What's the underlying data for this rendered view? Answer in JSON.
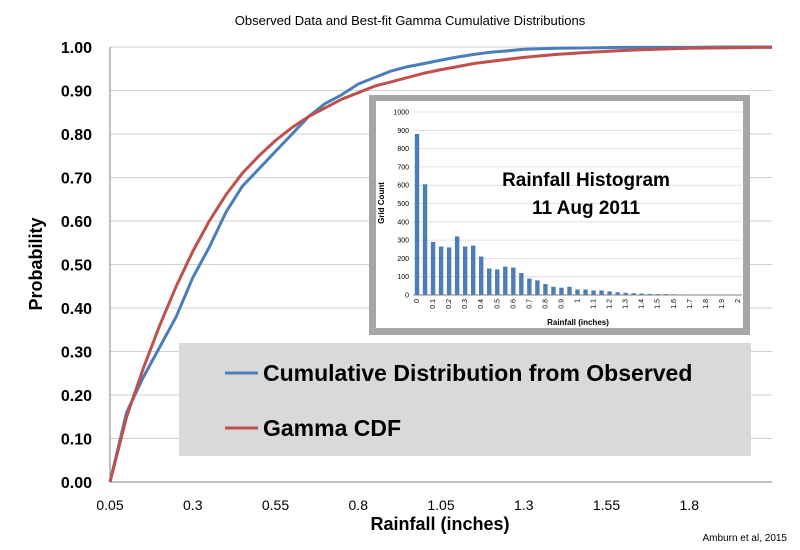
{
  "credit": "Amburn et al, 2015",
  "chart_data": [
    {
      "type": "line",
      "title": "Observed Data and Best-fit Gamma Cumulative Distributions",
      "xlabel": "Rainfall (inches)",
      "ylabel": "Probability",
      "xlim": [
        0.05,
        2.05
      ],
      "ylim": [
        0,
        1
      ],
      "x_ticks": [
        0.05,
        0.3,
        0.55,
        0.8,
        1.05,
        1.3,
        1.55,
        1.8
      ],
      "x_tick_labels": [
        "0.05",
        "0.3",
        "0.55",
        "0.8",
        "1.05",
        "1.3",
        "1.55",
        "1.8"
      ],
      "y_ticks": [
        0,
        0.1,
        0.2,
        0.3,
        0.4,
        0.5,
        0.6,
        0.7,
        0.8,
        0.9,
        1.0
      ],
      "y_tick_labels": [
        "0.00",
        "0.10",
        "0.20",
        "0.30",
        "0.40",
        "0.50",
        "0.60",
        "0.70",
        "0.80",
        "0.90",
        "1.00"
      ],
      "grid": "horizontal",
      "legend": "center-bottom",
      "series": [
        {
          "name": "Cumulative Distribution from Observed",
          "color": "#4a7ebb",
          "x": [
            0.05,
            0.1,
            0.15,
            0.2,
            0.25,
            0.3,
            0.35,
            0.4,
            0.45,
            0.5,
            0.55,
            0.6,
            0.65,
            0.7,
            0.75,
            0.8,
            0.85,
            0.9,
            0.95,
            1.0,
            1.05,
            1.1,
            1.15,
            1.2,
            1.25,
            1.3,
            1.4,
            1.5,
            1.6,
            1.7,
            1.8,
            1.9,
            2.0,
            2.05
          ],
          "values": [
            0.0,
            0.16,
            0.24,
            0.31,
            0.38,
            0.47,
            0.54,
            0.62,
            0.68,
            0.72,
            0.76,
            0.8,
            0.84,
            0.87,
            0.89,
            0.915,
            0.93,
            0.945,
            0.955,
            0.962,
            0.97,
            0.977,
            0.983,
            0.988,
            0.991,
            0.995,
            0.997,
            0.998,
            0.999,
            0.999,
            0.999,
            1.0,
            1.0,
            1.0
          ]
        },
        {
          "name": "Gamma CDF",
          "color": "#c0504d",
          "x": [
            0.05,
            0.1,
            0.15,
            0.2,
            0.25,
            0.3,
            0.35,
            0.4,
            0.45,
            0.5,
            0.55,
            0.6,
            0.65,
            0.7,
            0.75,
            0.8,
            0.85,
            0.9,
            0.95,
            1.0,
            1.05,
            1.1,
            1.15,
            1.2,
            1.3,
            1.4,
            1.5,
            1.6,
            1.7,
            1.8,
            1.9,
            2.0,
            2.05
          ],
          "values": [
            0.0,
            0.15,
            0.26,
            0.36,
            0.45,
            0.53,
            0.6,
            0.66,
            0.71,
            0.75,
            0.785,
            0.815,
            0.84,
            0.86,
            0.88,
            0.895,
            0.91,
            0.92,
            0.93,
            0.94,
            0.948,
            0.955,
            0.962,
            0.967,
            0.976,
            0.983,
            0.988,
            0.992,
            0.995,
            0.997,
            0.998,
            0.999,
            0.999
          ]
        }
      ]
    },
    {
      "type": "bar",
      "title": "Rainfall Histogram 11 Aug 2011",
      "title_lines": [
        "Rainfall Histogram",
        "11 Aug 2011"
      ],
      "xlabel": "Rainfall (inches)",
      "ylabel": "Grid Count",
      "ylim": [
        0,
        1000
      ],
      "y_ticks": [
        0,
        100,
        200,
        300,
        400,
        500,
        600,
        700,
        800,
        900,
        1000
      ],
      "y_tick_labels": [
        "0",
        "100",
        "200",
        "300",
        "400",
        "500",
        "600",
        "700",
        "800",
        "900",
        "1000"
      ],
      "x_tick_labels": [
        "0",
        "0.1",
        "0.2",
        "0.3",
        "0.4",
        "0.5",
        "0.6",
        "0.7",
        "0.8",
        "0.9",
        "1",
        "1.1",
        "1.2",
        "1.3",
        "1.4",
        "1.5",
        "1.6",
        "1.7",
        "1.8",
        "1.9",
        "2"
      ],
      "grid": "horizontal",
      "color": "#4a7ebb",
      "categories": [
        "0",
        "0.05",
        "0.1",
        "0.15",
        "0.2",
        "0.25",
        "0.3",
        "0.35",
        "0.4",
        "0.45",
        "0.5",
        "0.55",
        "0.6",
        "0.65",
        "0.7",
        "0.75",
        "0.8",
        "0.85",
        "0.9",
        "0.95",
        "1",
        "1.05",
        "1.1",
        "1.15",
        "1.2",
        "1.25",
        "1.3",
        "1.35",
        "1.4",
        "1.45",
        "1.5",
        "1.55",
        "1.6",
        "1.65",
        "1.7",
        "1.75",
        "1.8",
        "1.85",
        "1.9",
        "1.95",
        "2"
      ],
      "values": [
        880,
        605,
        290,
        265,
        260,
        320,
        265,
        270,
        210,
        145,
        140,
        155,
        150,
        120,
        90,
        80,
        60,
        45,
        40,
        45,
        30,
        30,
        25,
        25,
        20,
        15,
        12,
        10,
        8,
        6,
        5,
        5,
        4,
        3,
        3,
        2,
        2,
        2,
        2,
        1,
        1
      ]
    }
  ]
}
